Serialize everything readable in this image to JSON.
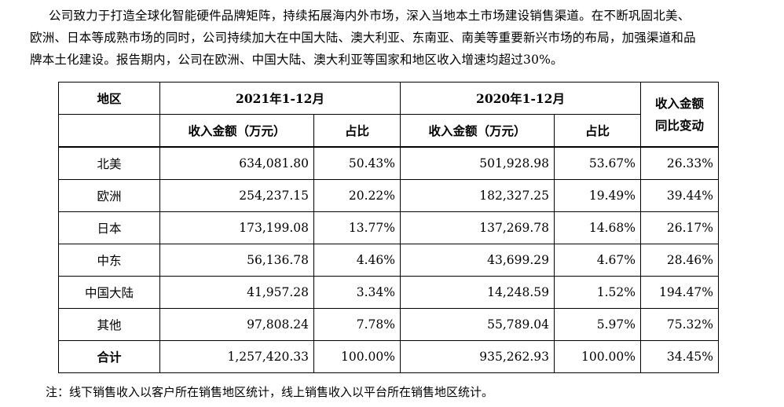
{
  "paragraph": {
    "line1": "公司致力于打造全球化智能硬件品牌矩阵，持续拓展海内外市场，深入当地本土市场建设销售渠道。在不断巩固北美、",
    "line2": "欧洲、日本等成熟市场的同时，公司持续加大在中国大陆、澳大利亚、东南亚、南美等重要新兴市场的布局，加强渠道和品",
    "line3": "牌本土化建设。报告期内，公司在欧洲、中国大陆、澳大利亚等国家和地区收入增速均超过30%。"
  },
  "table": {
    "header": {
      "region": "地区",
      "period_2021": "2021年1-12月",
      "period_2020": "2020年1-12月",
      "yoy_line1": "收入金额",
      "yoy_line2": "同比变动",
      "revenue_2021": "收入金额（万元）",
      "share_2021": "占比",
      "revenue_2020": "收入金额（万元）",
      "share_2020": "占比"
    },
    "rows": [
      {
        "region": "北美",
        "rev2021": "634,081.80",
        "share2021": "50.43%",
        "rev2020": "501,928.98",
        "share2020": "53.67%",
        "yoy": "26.33%"
      },
      {
        "region": "欧洲",
        "rev2021": "254,237.15",
        "share2021": "20.22%",
        "rev2020": "182,327.25",
        "share2020": "19.49%",
        "yoy": "39.44%"
      },
      {
        "region": "日本",
        "rev2021": "173,199.08",
        "share2021": "13.77%",
        "rev2020": "137,269.78",
        "share2020": "14.68%",
        "yoy": "26.17%"
      },
      {
        "region": "中东",
        "rev2021": "56,136.78",
        "share2021": "4.46%",
        "rev2020": "43,699.29",
        "share2020": "4.67%",
        "yoy": "28.46%"
      },
      {
        "region": "中国大陆",
        "rev2021": "41,957.28",
        "share2021": "3.34%",
        "rev2020": "14,248.59",
        "share2020": "1.52%",
        "yoy": "194.47%"
      },
      {
        "region": "其他",
        "rev2021": "97,808.24",
        "share2021": "7.78%",
        "rev2020": "55,789.04",
        "share2020": "5.97%",
        "yoy": "75.32%"
      }
    ],
    "total": {
      "region": "合计",
      "rev2021": "1,257,420.33",
      "share2021": "100.00%",
      "rev2020": "935,262.93",
      "share2020": "100.00%",
      "yoy": "34.45%"
    }
  },
  "note": "注：线下销售收入以客户所在销售地区统计，线上销售收入以平台所在销售地区统计。"
}
